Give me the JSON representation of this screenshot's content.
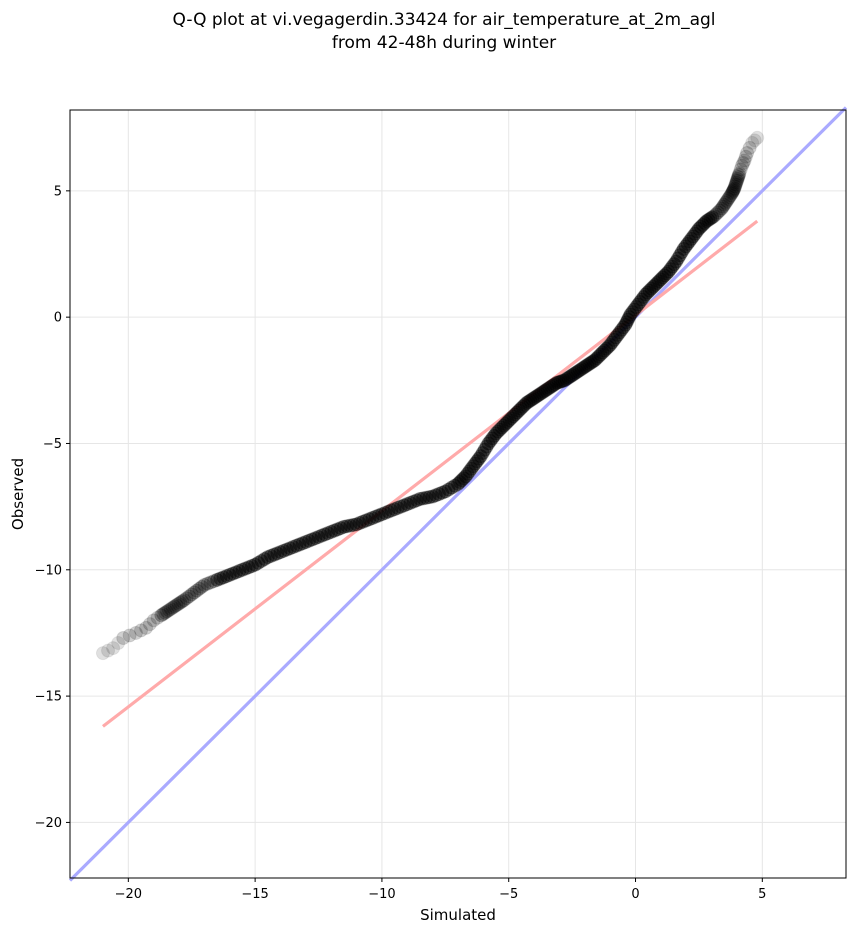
{
  "chart_data": {
    "type": "scatter",
    "title_lines": [
      "Q-Q plot at vi.vegagerdin.33424 for air_temperature_at_2m_agl",
      "from 42-48h during winter"
    ],
    "xlabel": "Simulated",
    "ylabel": "Observed",
    "xlim": [
      -22.3,
      8.3
    ],
    "ylim": [
      -22.2,
      8.2
    ],
    "xticks": [
      -20,
      -15,
      -10,
      -5,
      0,
      5
    ],
    "yticks": [
      -20,
      -15,
      -10,
      -5,
      0,
      5
    ],
    "xtick_labels": [
      "−20",
      "−15",
      "−10",
      "−5",
      "0",
      "5"
    ],
    "ytick_labels": [
      "−20",
      "−15",
      "−10",
      "−5",
      "0",
      "5"
    ],
    "grid": true,
    "colors": {
      "points": "#000000",
      "identity_line": "#aaaaff",
      "regression_line": "#ffaaaa"
    },
    "series": [
      {
        "kind": "points",
        "x": [
          -21.0,
          -20.6,
          -20.2,
          -19.7,
          -19.3,
          -19.0,
          -18.7,
          -18.4,
          -18.1,
          -17.8,
          -17.4,
          -17.0,
          -16.5,
          -16.0,
          -15.5,
          -15.0,
          -14.5,
          -14.0,
          -13.5,
          -13.0,
          -12.5,
          -12.0,
          -11.5,
          -11.0,
          -10.5,
          -10.0,
          -9.5,
          -9.0,
          -8.5,
          -8.0,
          -7.5,
          -7.0,
          -6.7,
          -6.4,
          -6.1,
          -5.8,
          -5.5,
          -5.2,
          -4.9,
          -4.6,
          -4.3,
          -4.0,
          -3.7,
          -3.4,
          -3.1,
          -2.8,
          -2.5,
          -2.2,
          -1.9,
          -1.6,
          -1.3,
          -1.0,
          -0.7,
          -0.4,
          -0.2,
          0.1,
          0.4,
          0.7,
          1.0,
          1.3,
          1.6,
          1.9,
          2.2,
          2.5,
          2.8,
          3.1,
          3.4,
          3.6,
          3.8,
          3.9,
          4.0,
          4.1,
          4.2,
          4.3,
          4.4,
          4.6,
          4.8
        ],
        "y": [
          -13.3,
          -13.1,
          -12.7,
          -12.5,
          -12.3,
          -12.0,
          -11.8,
          -11.6,
          -11.4,
          -11.2,
          -10.9,
          -10.6,
          -10.4,
          -10.2,
          -10.0,
          -9.8,
          -9.5,
          -9.3,
          -9.1,
          -8.9,
          -8.7,
          -8.5,
          -8.3,
          -8.2,
          -8.0,
          -7.8,
          -7.6,
          -7.4,
          -7.2,
          -7.1,
          -6.9,
          -6.6,
          -6.3,
          -5.9,
          -5.5,
          -5.0,
          -4.6,
          -4.3,
          -4.0,
          -3.7,
          -3.4,
          -3.2,
          -3.0,
          -2.8,
          -2.6,
          -2.5,
          -2.3,
          -2.1,
          -1.9,
          -1.7,
          -1.4,
          -1.1,
          -0.7,
          -0.3,
          0.1,
          0.5,
          0.9,
          1.2,
          1.5,
          1.8,
          2.2,
          2.7,
          3.1,
          3.5,
          3.8,
          4.0,
          4.3,
          4.6,
          4.9,
          5.1,
          5.4,
          5.7,
          6.0,
          6.2,
          6.5,
          6.9,
          7.1
        ]
      },
      {
        "kind": "identity_line",
        "x": [
          -22.3,
          8.3
        ],
        "y": [
          -22.3,
          8.3
        ]
      },
      {
        "kind": "regression_line",
        "x": [
          -21.0,
          4.8
        ],
        "y": [
          -16.2,
          3.8
        ]
      }
    ]
  }
}
